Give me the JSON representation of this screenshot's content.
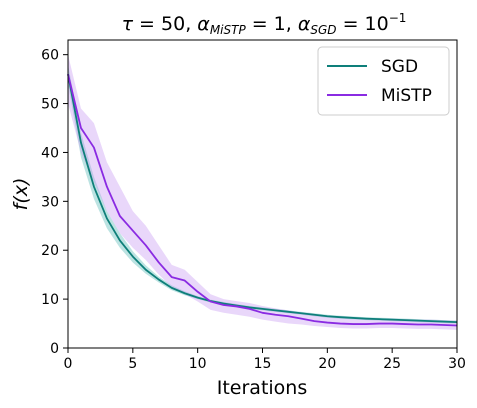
{
  "chart_data": {
    "type": "line",
    "title": "τ = 50, α_MiSTP = 1, α_SGD = 10⁻¹",
    "xlabel": "Iterations",
    "ylabel": "f(x)",
    "xlim": [
      0,
      30
    ],
    "ylim": [
      0,
      63
    ],
    "xticks": [
      0,
      5,
      10,
      15,
      20,
      25,
      30
    ],
    "yticks": [
      0,
      10,
      20,
      30,
      40,
      50,
      60
    ],
    "grid": false,
    "legend_position": "top-right",
    "x": [
      0,
      1,
      2,
      3,
      4,
      5,
      6,
      7,
      8,
      9,
      10,
      11,
      12,
      13,
      14,
      15,
      16,
      17,
      18,
      19,
      20,
      21,
      22,
      23,
      24,
      25,
      26,
      27,
      28,
      29,
      30
    ],
    "series": [
      {
        "name": "SGD",
        "color": "#0e7f7a",
        "band_color": "#40b0ad",
        "values": [
          56,
          42,
          33,
          26.5,
          22,
          18.7,
          16,
          14,
          12.3,
          11.2,
          10.3,
          9.6,
          9.1,
          8.7,
          8.3,
          8.0,
          7.7,
          7.4,
          7.1,
          6.8,
          6.5,
          6.3,
          6.15,
          6.0,
          5.9,
          5.8,
          5.7,
          5.6,
          5.5,
          5.4,
          5.3
        ],
        "lower": [
          54,
          39,
          30.5,
          24.5,
          20.5,
          17.5,
          15.2,
          13.4,
          11.8,
          10.8,
          10.0,
          9.3,
          8.8,
          8.4,
          8.0,
          7.7,
          7.4,
          7.1,
          6.8,
          6.5,
          6.2,
          6.0,
          5.85,
          5.7,
          5.6,
          5.5,
          5.4,
          5.3,
          5.2,
          5.1,
          5.0
        ],
        "upper": [
          58,
          44,
          35,
          28,
          23.5,
          19.8,
          16.9,
          14.6,
          12.8,
          11.6,
          10.6,
          9.9,
          9.4,
          9.0,
          8.6,
          8.3,
          8.0,
          7.7,
          7.4,
          7.1,
          6.8,
          6.6,
          6.45,
          6.3,
          6.2,
          6.1,
          6.0,
          5.9,
          5.8,
          5.7,
          5.6
        ]
      },
      {
        "name": "MiSTP",
        "color": "#8a2be2",
        "band_color": "#c79bf3",
        "values": [
          56,
          45,
          41,
          33,
          27,
          24,
          21,
          17.5,
          14.5,
          13.8,
          11.5,
          9.5,
          8.8,
          8.5,
          8.0,
          7.2,
          6.8,
          6.5,
          6.0,
          5.5,
          5.2,
          5.0,
          4.9,
          4.9,
          5.0,
          5.0,
          4.9,
          4.8,
          4.8,
          4.7,
          4.6
        ],
        "lower": [
          50,
          40,
          34,
          28,
          23.5,
          20.5,
          18,
          15,
          12.5,
          11,
          9.5,
          7.8,
          7.2,
          6.8,
          6.4,
          5.8,
          5.4,
          5.0,
          4.8,
          4.5,
          4.3,
          4.1,
          4.0,
          4.0,
          4.1,
          4.1,
          4.0,
          3.9,
          3.9,
          3.8,
          3.7
        ],
        "upper": [
          60,
          49,
          46,
          38,
          33,
          28,
          25,
          21,
          17,
          16,
          13.5,
          11,
          10,
          9.6,
          9.2,
          8.6,
          8.1,
          7.7,
          7.2,
          6.7,
          6.3,
          6.1,
          5.9,
          5.9,
          6.0,
          6.0,
          5.9,
          5.8,
          5.8,
          5.7,
          5.6
        ]
      }
    ]
  }
}
